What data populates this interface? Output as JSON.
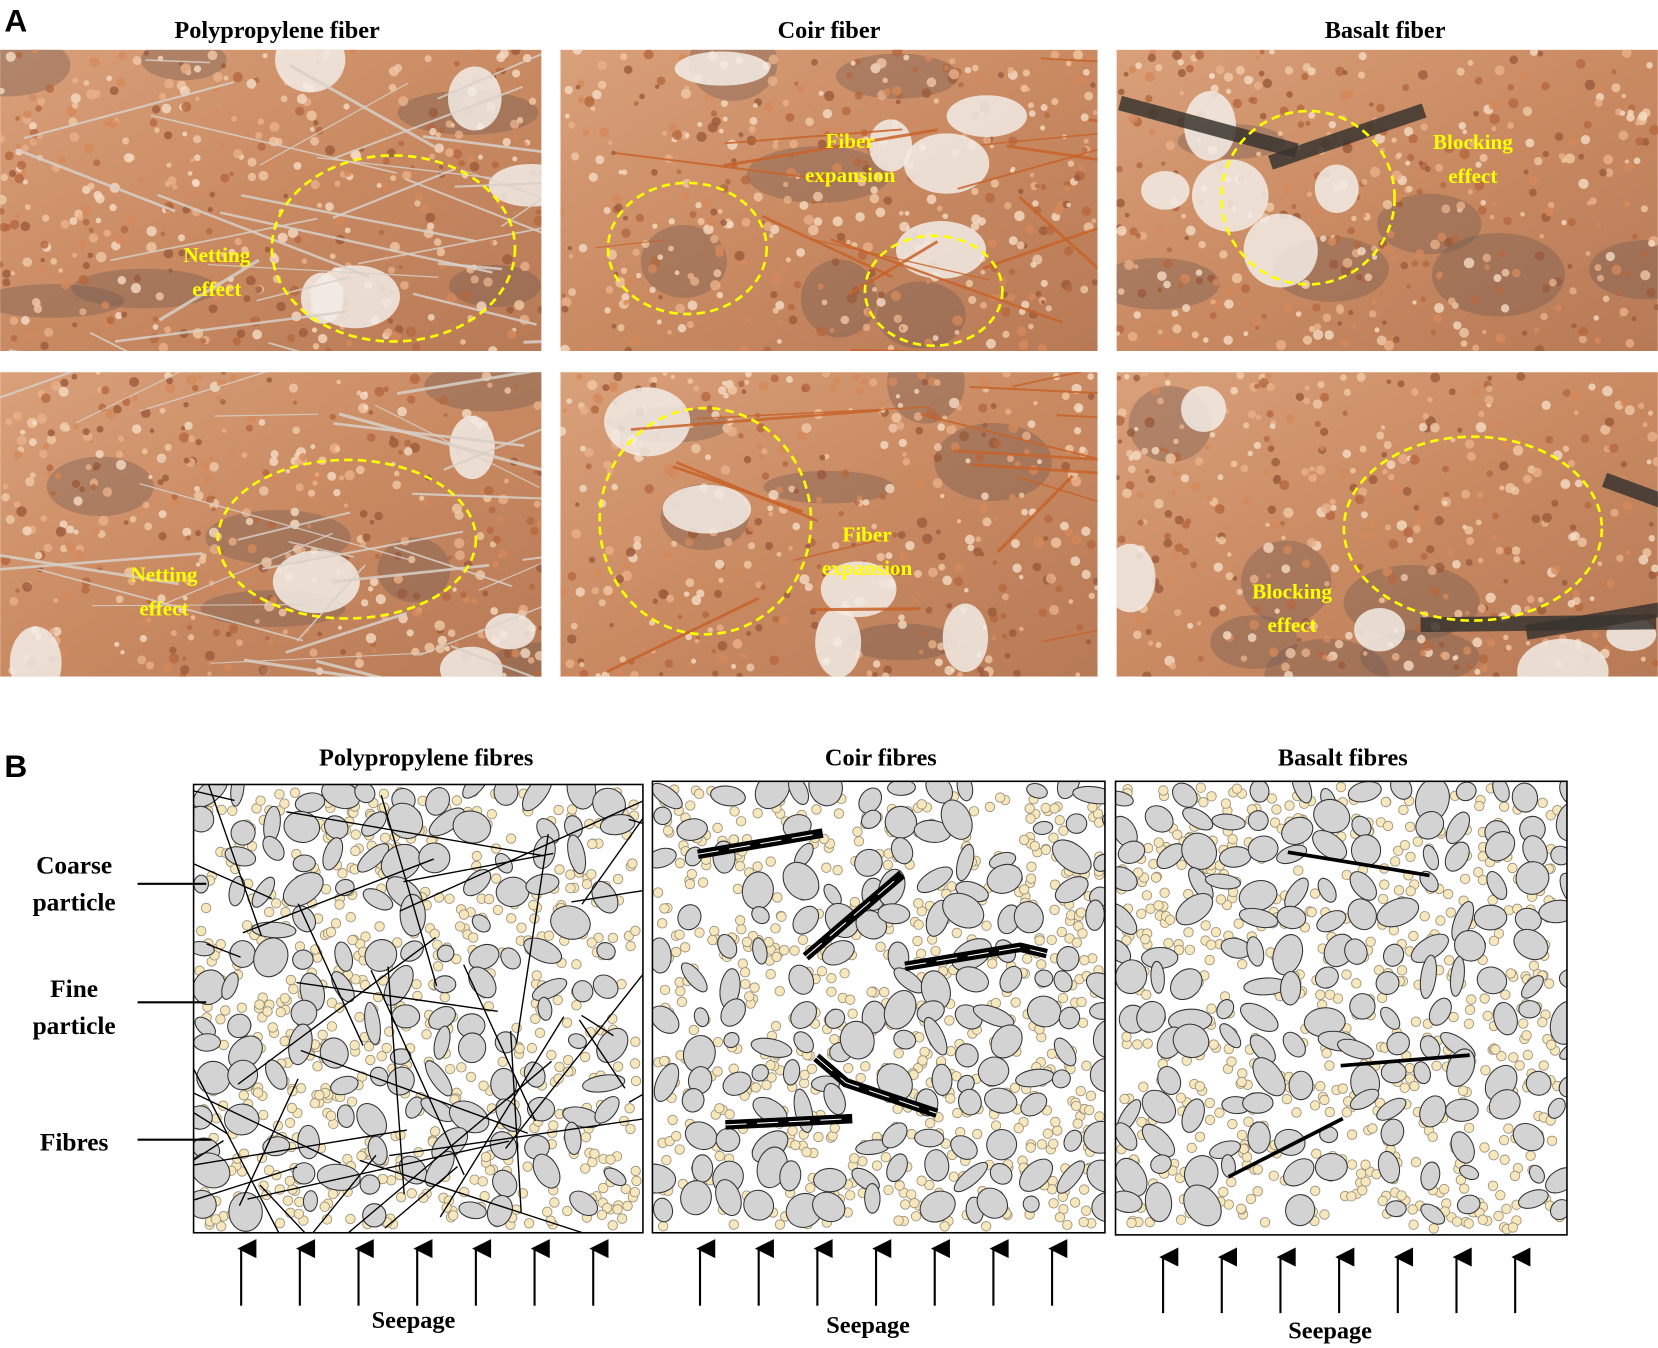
{
  "panel_a": {
    "label": "A",
    "titles": [
      "Polypropylene fiber",
      "Coir fiber",
      "Basalt fiber"
    ],
    "annotations": [
      [
        "Netting",
        "effect"
      ],
      [
        "Fiber",
        "expansion"
      ],
      [
        "Blocking",
        "effect"
      ],
      [
        "Netting",
        "effect"
      ],
      [
        "Fiber",
        "expansion"
      ],
      [
        "Blocking",
        "effect"
      ]
    ]
  },
  "panel_b": {
    "label": "B",
    "titles": [
      "Polypropylene fibres",
      "Coir fibres",
      "Basalt fibres"
    ],
    "legend": [
      [
        "Coarse",
        "particle"
      ],
      [
        "Fine",
        "particle"
      ],
      [
        "Fibres"
      ]
    ],
    "flow_labels": [
      "Seepage",
      "Seepage",
      "Seepage"
    ]
  }
}
